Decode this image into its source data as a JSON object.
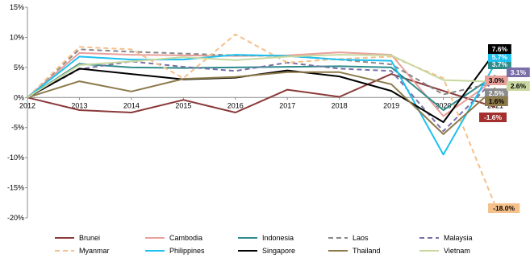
{
  "chart_data": {
    "type": "line",
    "x": [
      "2012",
      "2013",
      "2014",
      "2015",
      "2016",
      "2017",
      "2018",
      "2019",
      "2020",
      "2021"
    ],
    "ylim": [
      -20,
      15
    ],
    "yticks": [
      "15%",
      "10%",
      "5%",
      "0%",
      "-5%",
      "-10%",
      "-15%",
      "-20%"
    ],
    "ytick_values": [
      15,
      10,
      5,
      0,
      -5,
      -10,
      -15,
      -20
    ],
    "grid": false,
    "legend": "bottom",
    "series": [
      {
        "name": "Brunei",
        "color": "#8B3A3A",
        "dash": "solid",
        "values": [
          0,
          -2.1,
          -2.5,
          -0.4,
          -2.5,
          1.3,
          0.1,
          3.9,
          1.1,
          -1.6
        ],
        "end_label": "-1.6%",
        "label_bg": "#A3302E",
        "label_fg": "#ffffff"
      },
      {
        "name": "Cambodia",
        "color": "#E8A09A",
        "dash": "solid",
        "values": [
          0,
          7.4,
          7.1,
          7.0,
          6.9,
          7.0,
          7.5,
          7.1,
          -3.1,
          3.0
        ],
        "end_label": "3.0%",
        "label_bg": "#E8A09A",
        "label_fg": "#000000"
      },
      {
        "name": "Indonesia",
        "color": "#2E8B8B",
        "dash": "solid",
        "values": [
          0,
          5.6,
          5.0,
          4.9,
          5.0,
          5.1,
          5.2,
          5.0,
          -2.1,
          3.7
        ],
        "end_label": "3.7%",
        "label_bg": "#2E8B8B",
        "label_fg": "#ffffff"
      },
      {
        "name": "Laos",
        "color": "#888888",
        "dash": "dashed",
        "values": [
          0,
          8.0,
          7.6,
          7.3,
          7.0,
          6.9,
          6.3,
          5.5,
          0.5,
          2.5
        ],
        "end_label": "2.5%",
        "label_bg": "#8C8C8C",
        "label_fg": "#ffffff"
      },
      {
        "name": "Malaysia",
        "color": "#7A6FA8",
        "dash": "dashed",
        "values": [
          0,
          4.7,
          6.0,
          5.1,
          4.4,
          5.8,
          4.8,
          4.4,
          -5.6,
          3.1
        ],
        "end_label": "3.1%",
        "label_bg": "#7A6FA8",
        "label_fg": "#ffffff"
      },
      {
        "name": "Myanmar",
        "color": "#F5C08A",
        "dash": "dashed",
        "values": [
          0,
          8.4,
          8.0,
          3.2,
          10.5,
          5.8,
          6.4,
          6.8,
          3.2,
          -18.0
        ],
        "end_label": "-18.0%",
        "label_bg": "#F5C08A",
        "label_fg": "#000000"
      },
      {
        "name": "Philippines",
        "color": "#1EC0F0",
        "dash": "solid",
        "values": [
          0,
          6.8,
          6.3,
          6.3,
          7.1,
          6.9,
          6.3,
          6.1,
          -9.5,
          5.7
        ],
        "end_label": "5.7%",
        "label_bg": "#1EC0F0",
        "label_fg": "#ffffff"
      },
      {
        "name": "Singapore",
        "color": "#000000",
        "dash": "solid",
        "values": [
          0,
          4.8,
          3.9,
          3.0,
          3.3,
          4.5,
          3.5,
          1.1,
          -4.1,
          7.6
        ],
        "end_label": "7.6%",
        "label_bg": "#000000",
        "label_fg": "#ffffff"
      },
      {
        "name": "Thailand",
        "color": "#8C7A4A",
        "dash": "solid",
        "values": [
          0,
          2.7,
          1.0,
          3.1,
          3.4,
          4.2,
          4.2,
          2.2,
          -6.1,
          1.6
        ],
        "end_label": "1.6%",
        "label_bg": "#8C7A4A",
        "label_fg": "#000000"
      },
      {
        "name": "Vietnam",
        "color": "#C8D7A0",
        "dash": "solid",
        "values": [
          0,
          5.4,
          6.0,
          6.7,
          6.2,
          6.8,
          7.1,
          7.0,
          2.9,
          2.6
        ],
        "end_label": "2.6%",
        "label_bg": "#C8D7A0",
        "label_fg": "#000000"
      }
    ]
  }
}
